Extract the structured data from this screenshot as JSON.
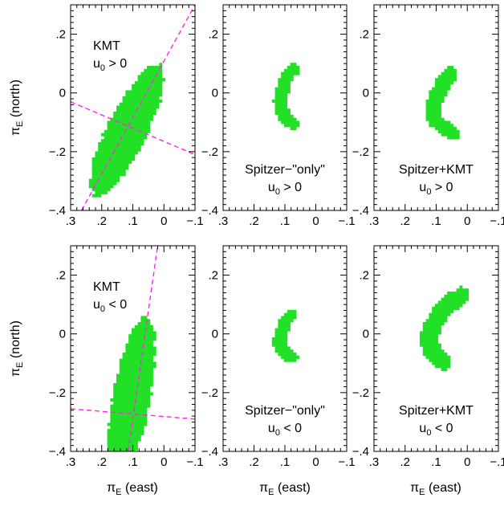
{
  "colors": {
    "black": "#000000",
    "red": "#ff0000",
    "yellow": "#ffff00",
    "green": "#22e026",
    "dashed_line": "#ff22ee"
  },
  "axis_labels": {
    "x_prefix": "π",
    "x_sub": "E",
    "x_suffix": " (east)",
    "y_prefix": "π",
    "y_sub": "E",
    "y_suffix": " (north)"
  },
  "chart_data": [
    {
      "type": "scatter",
      "label": [
        "KMT",
        "u₀ > 0"
      ],
      "xlim": [
        0.3,
        -0.1
      ],
      "ylim": [
        -0.4,
        0.3
      ],
      "xticks": [
        ".3",
        ".2",
        ".1",
        "0",
        "−.1"
      ],
      "xtick_values": [
        0.3,
        0.2,
        0.1,
        0,
        -0.1
      ],
      "yticks": [
        "−.4",
        "−.2",
        "0",
        ".2"
      ],
      "ytick_values": [
        -0.4,
        -0.2,
        0,
        0.2
      ],
      "contours": {
        "cx": 0.12,
        "cy": -0.13,
        "angle_deg": 65,
        "rx": [
          0.07,
          0.12,
          0.18,
          0.24
        ],
        "ry": [
          0.018,
          0.035,
          0.05,
          0.065
        ]
      },
      "dashed_lines": [
        {
          "x": [
            0.265,
            -0.1
          ],
          "y": [
            -0.4,
            0.3
          ]
        },
        {
          "x": [
            0.3,
            -0.1
          ],
          "y": [
            -0.03,
            -0.21
          ]
        }
      ]
    },
    {
      "type": "scatter",
      "label": [
        "Spitzer−\"only\"",
        "u₀ > 0"
      ],
      "xlim": [
        0.3,
        -0.1
      ],
      "ylim": [
        -0.4,
        0.3
      ],
      "xticks": [
        ".3",
        ".2",
        ".1",
        "0",
        "−.1"
      ],
      "xtick_values": [
        0.3,
        0.2,
        0.1,
        0,
        -0.1
      ],
      "yticks": [
        "−.4",
        "−.2",
        "0",
        ".2"
      ],
      "ytick_values": [
        -0.4,
        -0.2,
        0,
        0.2
      ],
      "arc": {
        "x": [
          0.075,
          0.095,
          0.105,
          0.112,
          0.115,
          0.113,
          0.105,
          0.09,
          0.075
        ],
        "y": [
          0.08,
          0.05,
          0.02,
          -0.01,
          -0.03,
          -0.05,
          -0.075,
          -0.095,
          -0.105
        ],
        "widths": [
          0.004,
          0.009,
          0.015,
          0.021
        ]
      }
    },
    {
      "type": "scatter",
      "label": [
        "Spitzer+KMT",
        "u₀ > 0"
      ],
      "xlim": [
        0.3,
        -0.1
      ],
      "ylim": [
        -0.4,
        0.3
      ],
      "xticks": [
        ".3",
        ".2",
        ".1",
        "0",
        "−.1"
      ],
      "xtick_values": [
        0.3,
        0.2,
        0.1,
        0,
        -0.1
      ],
      "yticks": [
        "−.4",
        "−.2",
        "0",
        ".2"
      ],
      "ytick_values": [
        -0.4,
        -0.2,
        0,
        0.2
      ],
      "arc": {
        "x": [
          0.055,
          0.075,
          0.095,
          0.108,
          0.11,
          0.1,
          0.085,
          0.065,
          0.05
        ],
        "y": [
          0.065,
          0.035,
          0.0,
          -0.04,
          -0.07,
          -0.095,
          -0.11,
          -0.125,
          -0.135
        ],
        "widths": [
          0.005,
          0.011,
          0.018,
          0.025
        ]
      }
    },
    {
      "type": "scatter",
      "label": [
        "KMT",
        "u₀ < 0"
      ],
      "xlim": [
        0.3,
        -0.1
      ],
      "ylim": [
        -0.4,
        0.3
      ],
      "xticks": [
        ".3",
        ".2",
        ".1",
        "0",
        "−.1"
      ],
      "xtick_values": [
        0.3,
        0.2,
        0.1,
        0,
        -0.1
      ],
      "yticks": [
        "−.4",
        "−.2",
        "0",
        ".2"
      ],
      "ytick_values": [
        -0.4,
        -0.2,
        0,
        0.2
      ],
      "contours": {
        "cx": 0.105,
        "cy": -0.22,
        "angle_deg": 80,
        "rx": [
          0.085,
          0.15,
          0.22,
          0.28
        ],
        "ry": [
          0.015,
          0.03,
          0.045,
          0.06
        ]
      },
      "dashed_lines": [
        {
          "x": [
            0.115,
            0.02
          ],
          "y": [
            -0.4,
            0.3
          ]
        },
        {
          "x": [
            0.3,
            -0.1
          ],
          "y": [
            -0.255,
            -0.29
          ]
        }
      ]
    },
    {
      "type": "scatter",
      "label": [
        "Spitzer−\"only\"",
        "u₀ < 0"
      ],
      "xlim": [
        0.3,
        -0.1
      ],
      "ylim": [
        -0.4,
        0.3
      ],
      "xticks": [
        ".3",
        ".2",
        ".1",
        "0",
        "−.1"
      ],
      "xtick_values": [
        0.3,
        0.2,
        0.1,
        0,
        -0.1
      ],
      "yticks": [
        "−.4",
        "−.2",
        "0",
        ".2"
      ],
      "ytick_values": [
        -0.4,
        -0.2,
        0,
        0.2
      ],
      "arc": {
        "x": [
          0.08,
          0.1,
          0.11,
          0.117,
          0.118,
          0.115,
          0.105,
          0.092,
          0.08
        ],
        "y": [
          0.065,
          0.04,
          0.015,
          -0.005,
          -0.025,
          -0.045,
          -0.06,
          -0.07,
          -0.08
        ],
        "widths": [
          0.004,
          0.009,
          0.015,
          0.021
        ]
      }
    },
    {
      "type": "scatter",
      "label": [
        "Spitzer+KMT",
        "u₀ < 0"
      ],
      "xlim": [
        0.3,
        -0.1
      ],
      "ylim": [
        -0.4,
        0.3
      ],
      "xticks": [
        ".3",
        ".2",
        ".1",
        "0",
        "−.1"
      ],
      "xtick_values": [
        0.3,
        0.2,
        0.1,
        0,
        -0.1
      ],
      "yticks": [
        "−.4",
        "−.2",
        "0",
        ".2"
      ],
      "ytick_values": [
        -0.4,
        -0.2,
        0,
        0.2
      ],
      "arc": {
        "x": [
          0.02,
          0.05,
          0.08,
          0.105,
          0.12,
          0.122,
          0.112,
          0.095,
          0.078
        ],
        "y": [
          0.13,
          0.11,
          0.08,
          0.04,
          0.0,
          -0.035,
          -0.06,
          -0.08,
          -0.095
        ],
        "widths": [
          0.006,
          0.013,
          0.021,
          0.029
        ]
      }
    }
  ]
}
